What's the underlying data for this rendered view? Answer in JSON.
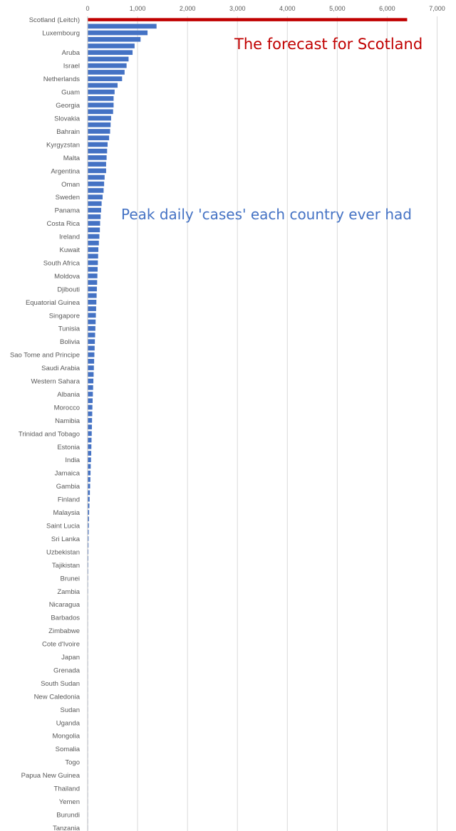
{
  "annotations": {
    "forecast": "The forecast for Scotland",
    "peak": "Peak daily 'cases' each country ever had"
  },
  "colors": {
    "highlight": "#c00000",
    "bars": "#4472c4",
    "highlight_text": "#c00000",
    "peak_text": "#4472c4",
    "grid": "#d9d9d9",
    "text": "#595959"
  },
  "chart_data": {
    "type": "bar",
    "orientation": "horizontal",
    "title": "",
    "xlabel": "",
    "ylabel": "",
    "xlim": [
      0,
      7000
    ],
    "xticks": [
      0,
      1000,
      2000,
      3000,
      4000,
      5000,
      6000,
      7000
    ],
    "xtick_labels": [
      "0",
      "1,000",
      "2,000",
      "3,000",
      "4,000",
      "5,000",
      "6,000",
      "7,000"
    ],
    "grid": true,
    "highlight_category": "Scotland (Leitch)",
    "categories": [
      "Scotland (Leitch)",
      "",
      "Luxembourg",
      "",
      "",
      "Aruba",
      "",
      "Israel",
      "",
      "Netherlands",
      "",
      "Guam",
      "",
      "Georgia",
      "",
      "Slovakia",
      "",
      "Bahrain",
      "",
      "Kyrgyzstan",
      "",
      "Malta",
      "",
      "Argentina",
      "",
      "Oman",
      "",
      "Sweden",
      "",
      "Panama",
      "",
      "Costa Rica",
      "",
      "Ireland",
      "",
      "Kuwait",
      "",
      "South Africa",
      "",
      "Moldova",
      "",
      "Djibouti",
      "",
      "Equatorial Guinea",
      "",
      "Singapore",
      "",
      "Tunisia",
      "",
      "Bolivia",
      "",
      "Sao Tome and Principe",
      "",
      "Saudi Arabia",
      "",
      "Western Sahara",
      "",
      "Albania",
      "",
      "Morocco",
      "",
      "Namibia",
      "",
      "Trinidad and Tobago",
      "",
      "Estonia",
      "",
      "India",
      "",
      "Jamaica",
      "",
      "Gambia",
      "",
      "Finland",
      "",
      "Malaysia",
      "",
      "Saint Lucia",
      "",
      "Sri Lanka",
      "",
      "Uzbekistan",
      "",
      "Tajikistan",
      "",
      "Brunei",
      "",
      "Zambia",
      "",
      "Nicaragua",
      "",
      "Barbados",
      "",
      "Zimbabwe",
      "",
      "Cote d'Ivoire",
      "",
      "Japan",
      "",
      "Grenada",
      "",
      "South Sudan",
      "",
      "New Caledonia",
      "",
      "Sudan",
      "",
      "Uganda",
      "",
      "Mongolia",
      "",
      "Somalia",
      "",
      "Togo",
      "",
      "Papua New Guinea",
      "",
      "Thailand",
      "",
      "Yemen",
      "",
      "Burundi",
      "",
      "Tanzania"
    ],
    "values": [
      6400,
      1380,
      1200,
      1060,
      940,
      900,
      820,
      780,
      740,
      690,
      600,
      540,
      520,
      520,
      510,
      470,
      460,
      450,
      430,
      400,
      390,
      380,
      370,
      370,
      340,
      330,
      320,
      300,
      280,
      270,
      260,
      250,
      245,
      235,
      225,
      215,
      210,
      205,
      200,
      195,
      190,
      185,
      180,
      175,
      170,
      165,
      160,
      155,
      150,
      145,
      140,
      135,
      130,
      125,
      120,
      115,
      110,
      105,
      100,
      95,
      92,
      88,
      85,
      82,
      78,
      75,
      72,
      68,
      62,
      58,
      55,
      50,
      45,
      40,
      35,
      30,
      27,
      24,
      21,
      19,
      17,
      15,
      14,
      13,
      12,
      11,
      10,
      10,
      9,
      9,
      8,
      8,
      7,
      7,
      7,
      6,
      6,
      6,
      5,
      5,
      5,
      5,
      4,
      4,
      4,
      4,
      3,
      3,
      3,
      3,
      3,
      2,
      2,
      2,
      2,
      2,
      2,
      1,
      1,
      1,
      1,
      1,
      1,
      1
    ]
  }
}
